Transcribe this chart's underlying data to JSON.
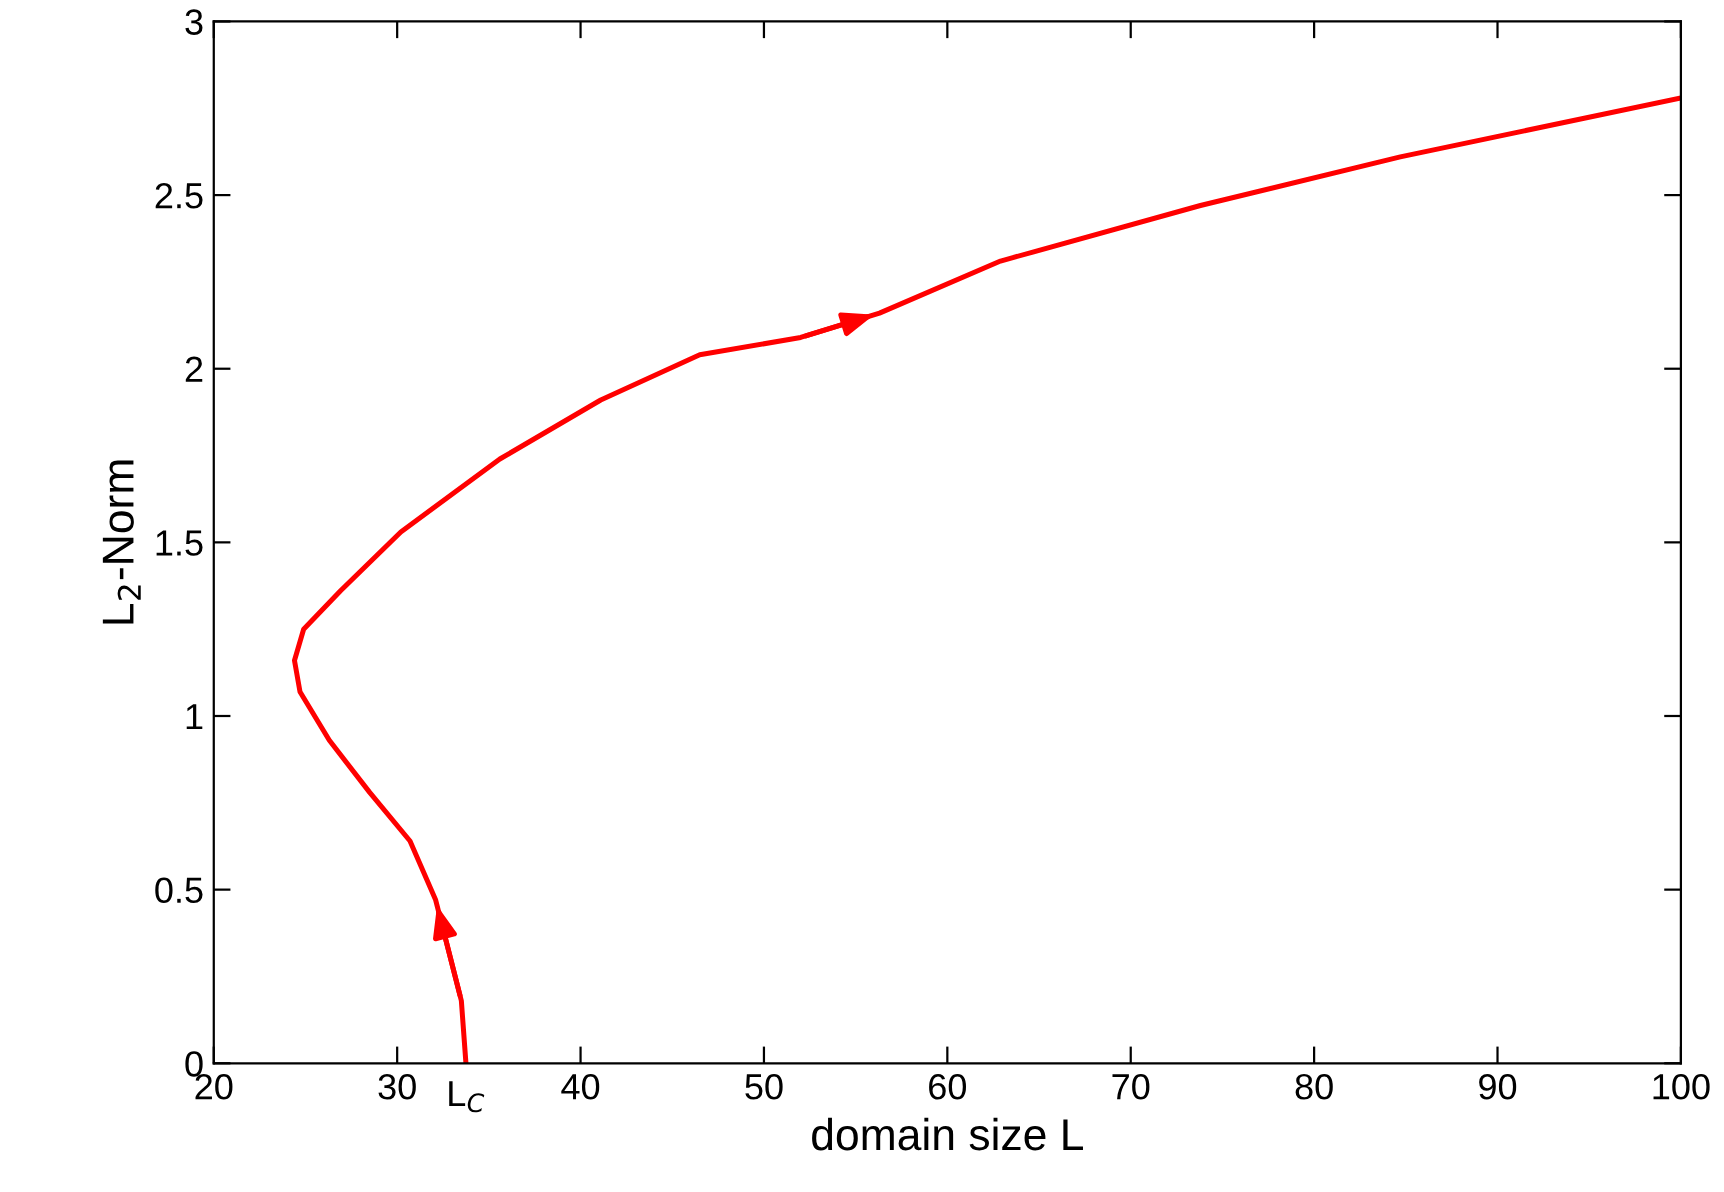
{
  "chart_data": {
    "type": "line",
    "xlabel": "domain size L",
    "ylabel": "L$_{2}$-Norm",
    "x": [
      33.75,
      33.5,
      32.1,
      30.7,
      28.5,
      26.3,
      24.7,
      24.4,
      24.9,
      26.9,
      30.2,
      35.6,
      41.1,
      46.5,
      52,
      56.3,
      62.9,
      73.8,
      84.7,
      100
    ],
    "series": [
      {
        "color": "#ff0000",
        "values": [
          0,
          0.18,
          0.47,
          0.64,
          0.78,
          0.93,
          1.07,
          1.16,
          1.25,
          1.36,
          1.53,
          1.74,
          1.91,
          2.04,
          2.09,
          2.16,
          2.31,
          2.47,
          2.61,
          2.78
        ]
      }
    ],
    "xlim": [
      20,
      100
    ],
    "xticks": [
      20,
      30,
      40,
      50,
      60,
      70,
      80,
      90,
      100
    ],
    "ylim": [
      0,
      3
    ],
    "yticks": [
      0,
      0.5,
      1,
      1.5,
      2,
      2.5,
      3
    ],
    "annotations": [
      {
        "text": "L$_{C}$",
        "x": 33.75,
        "y": 0
      }
    ],
    "grid": false,
    "legend": false,
    "marker": "none",
    "line_style": "solid"
  }
}
